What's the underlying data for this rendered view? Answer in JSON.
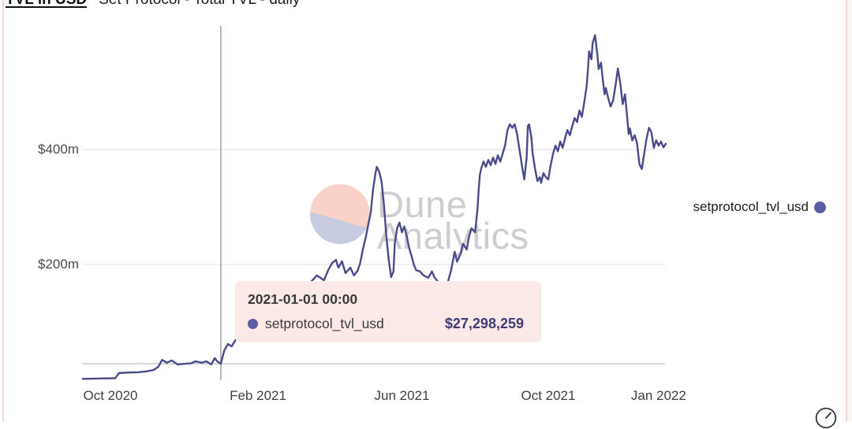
{
  "header": {
    "title_bold": "TVL in USD",
    "title_rest": "Set Protocol - Total TVL - daily"
  },
  "watermark": {
    "line1": "Dune",
    "line2": "Analytics",
    "circle_color_top": "#f8d2c9",
    "circle_color_bottom": "#c6cbe0"
  },
  "legend": {
    "label": "setprotocol_tvl_usd",
    "dot_color": "#5c5ca6"
  },
  "tooltip": {
    "datetime": "2021-01-01 00:00",
    "series_label": "setprotocol_tvl_usd",
    "value": "$27,298,259",
    "bg": "#fbe9e7",
    "dot_color": "#5c5ca6"
  },
  "colors": {
    "line": "#4b4b8c",
    "gridline": "#f2e9e8",
    "crosshair_v": "#a6a6a6",
    "crosshair_h": "#c6c6c6"
  },
  "chart_data": {
    "type": "line",
    "title": "Set Protocol - Total TVL - daily",
    "ylabel": "TVL in USD",
    "unit": "USD millions",
    "ylim": [
      0,
      615
    ],
    "grid": "horizontal-only",
    "legend_position": "right",
    "y_ticks": [
      {
        "label": "$200m",
        "value": 200
      },
      {
        "label": "$400m",
        "value": 400
      }
    ],
    "x_ticks": [
      {
        "label": "Oct 2020",
        "date": "2020-10-01"
      },
      {
        "label": "Feb 2021",
        "date": "2021-02-01"
      },
      {
        "label": "Jun 2021",
        "date": "2021-06-01"
      },
      {
        "label": "Oct 2021",
        "date": "2021-10-01"
      },
      {
        "label": "Jan 2022",
        "date": "2022-01-01"
      }
    ],
    "crosshair": {
      "date": "2021-01-01",
      "value": 27.3
    },
    "hovered_point": {
      "datetime": "2021-01-01 00:00",
      "series": "setprotocol_tvl_usd",
      "value_usd": 27298259
    },
    "series": [
      {
        "name": "setprotocol_tvl_usd",
        "color": "#4b4b8c",
        "points": [
          [
            "2020-09-08",
            1
          ],
          [
            "2020-09-20",
            1.5
          ],
          [
            "2020-10-05",
            2
          ],
          [
            "2020-10-08",
            11
          ],
          [
            "2020-10-16",
            12
          ],
          [
            "2020-10-24",
            12.5
          ],
          [
            "2020-10-31",
            14
          ],
          [
            "2020-11-06",
            16.5
          ],
          [
            "2020-11-10",
            22
          ],
          [
            "2020-11-13",
            34
          ],
          [
            "2020-11-17",
            29
          ],
          [
            "2020-11-21",
            33
          ],
          [
            "2020-11-26",
            26
          ],
          [
            "2020-12-03",
            27.5
          ],
          [
            "2020-12-07",
            28
          ],
          [
            "2020-12-11",
            31.5
          ],
          [
            "2020-12-16",
            29
          ],
          [
            "2020-12-20",
            31.5
          ],
          [
            "2020-12-24",
            26
          ],
          [
            "2020-12-27",
            37
          ],
          [
            "2020-12-29",
            31.5
          ],
          [
            "2021-01-01",
            27.3
          ],
          [
            "2021-01-04",
            50.7
          ],
          [
            "2021-01-07",
            61.6
          ],
          [
            "2021-01-10",
            57.5
          ],
          [
            "2021-01-14",
            71
          ],
          [
            "2021-01-20",
            85
          ],
          [
            "2021-01-25",
            78
          ],
          [
            "2021-02-01",
            98.6
          ],
          [
            "2021-02-07",
            112
          ],
          [
            "2021-02-12",
            105
          ],
          [
            "2021-02-17",
            126
          ],
          [
            "2021-02-24",
            140
          ],
          [
            "2021-03-01",
            133
          ],
          [
            "2021-03-08",
            153
          ],
          [
            "2021-03-16",
            167
          ],
          [
            "2021-03-22",
            181
          ],
          [
            "2021-03-28",
            172.6
          ],
          [
            "2021-04-01",
            192
          ],
          [
            "2021-04-04",
            203
          ],
          [
            "2021-04-07",
            208
          ],
          [
            "2021-04-09",
            194.5
          ],
          [
            "2021-04-12",
            205.5
          ],
          [
            "2021-04-15",
            185
          ],
          [
            "2021-04-19",
            194.5
          ],
          [
            "2021-04-22",
            181
          ],
          [
            "2021-04-25",
            189
          ],
          [
            "2021-04-27",
            201
          ],
          [
            "2021-04-29",
            222
          ],
          [
            "2021-05-02",
            249
          ],
          [
            "2021-05-04",
            270
          ],
          [
            "2021-05-06",
            290
          ],
          [
            "2021-05-08",
            331.5
          ],
          [
            "2021-05-10",
            359
          ],
          [
            "2021-05-11",
            370
          ],
          [
            "2021-05-13",
            361.6
          ],
          [
            "2021-05-15",
            345
          ],
          [
            "2021-05-17",
            304
          ],
          [
            "2021-05-19",
            249
          ],
          [
            "2021-05-21",
            208
          ],
          [
            "2021-05-23",
            178
          ],
          [
            "2021-05-25",
            188
          ],
          [
            "2021-05-26",
            236
          ],
          [
            "2021-05-28",
            263
          ],
          [
            "2021-05-30",
            273
          ],
          [
            "2021-06-01",
            256
          ],
          [
            "2021-06-03",
            266
          ],
          [
            "2021-06-05",
            249
          ],
          [
            "2021-06-07",
            229
          ],
          [
            "2021-06-09",
            215
          ],
          [
            "2021-06-11",
            199
          ],
          [
            "2021-06-13",
            190
          ],
          [
            "2021-06-16",
            188
          ],
          [
            "2021-06-19",
            181
          ],
          [
            "2021-06-23",
            177
          ],
          [
            "2021-06-26",
            188
          ],
          [
            "2021-06-28",
            178
          ],
          [
            "2021-07-01",
            170
          ],
          [
            "2021-07-05",
            164
          ],
          [
            "2021-07-09",
            167
          ],
          [
            "2021-07-12",
            190
          ],
          [
            "2021-07-15",
            222
          ],
          [
            "2021-07-17",
            205
          ],
          [
            "2021-07-20",
            219
          ],
          [
            "2021-07-22",
            236
          ],
          [
            "2021-07-25",
            226
          ],
          [
            "2021-07-27",
            249
          ],
          [
            "2021-07-29",
            263
          ],
          [
            "2021-08-01",
            256
          ],
          [
            "2021-08-03",
            297
          ],
          [
            "2021-08-04",
            331
          ],
          [
            "2021-08-05",
            356
          ],
          [
            "2021-08-06",
            366
          ],
          [
            "2021-08-08",
            379
          ],
          [
            "2021-08-10",
            370
          ],
          [
            "2021-08-12",
            382
          ],
          [
            "2021-08-14",
            373
          ],
          [
            "2021-08-16",
            386
          ],
          [
            "2021-08-18",
            375
          ],
          [
            "2021-08-20",
            390
          ],
          [
            "2021-08-22",
            379
          ],
          [
            "2021-08-24",
            393
          ],
          [
            "2021-08-26",
            407
          ],
          [
            "2021-08-28",
            434
          ],
          [
            "2021-08-30",
            444
          ],
          [
            "2021-09-01",
            438
          ],
          [
            "2021-09-03",
            444
          ],
          [
            "2021-09-05",
            427
          ],
          [
            "2021-09-07",
            400
          ],
          [
            "2021-09-09",
            373
          ],
          [
            "2021-09-11",
            348
          ],
          [
            "2021-09-13",
            386
          ],
          [
            "2021-09-14",
            441
          ],
          [
            "2021-09-15",
            444
          ],
          [
            "2021-09-17",
            420
          ],
          [
            "2021-09-18",
            393
          ],
          [
            "2021-09-20",
            366
          ],
          [
            "2021-09-22",
            345
          ],
          [
            "2021-09-24",
            352
          ],
          [
            "2021-09-25",
            342
          ],
          [
            "2021-09-27",
            359
          ],
          [
            "2021-09-29",
            352
          ],
          [
            "2021-10-01",
            348
          ],
          [
            "2021-10-03",
            373
          ],
          [
            "2021-10-05",
            393
          ],
          [
            "2021-10-07",
            407
          ],
          [
            "2021-10-09",
            397
          ],
          [
            "2021-10-11",
            414
          ],
          [
            "2021-10-13",
            403
          ],
          [
            "2021-10-15",
            420
          ],
          [
            "2021-10-17",
            434
          ],
          [
            "2021-10-19",
            425
          ],
          [
            "2021-10-21",
            441
          ],
          [
            "2021-10-23",
            455
          ],
          [
            "2021-10-25",
            448
          ],
          [
            "2021-10-27",
            468
          ],
          [
            "2021-10-29",
            457
          ],
          [
            "2021-10-31",
            482
          ],
          [
            "2021-11-02",
            510
          ],
          [
            "2021-11-03",
            537
          ],
          [
            "2021-11-04",
            571
          ],
          [
            "2021-11-06",
            557
          ],
          [
            "2021-11-07",
            585
          ],
          [
            "2021-11-09",
            599
          ],
          [
            "2021-11-11",
            564
          ],
          [
            "2021-11-12",
            540
          ],
          [
            "2021-11-14",
            551
          ],
          [
            "2021-11-15",
            530
          ],
          [
            "2021-11-17",
            496
          ],
          [
            "2021-11-18",
            507
          ],
          [
            "2021-11-20",
            489
          ],
          [
            "2021-11-22",
            475
          ],
          [
            "2021-11-24",
            485
          ],
          [
            "2021-11-26",
            510
          ],
          [
            "2021-11-28",
            541
          ],
          [
            "2021-11-30",
            516
          ],
          [
            "2021-12-02",
            479
          ],
          [
            "2021-12-04",
            496
          ],
          [
            "2021-12-06",
            452
          ],
          [
            "2021-12-07",
            427
          ],
          [
            "2021-12-08",
            437
          ],
          [
            "2021-12-10",
            416
          ],
          [
            "2021-12-12",
            425
          ],
          [
            "2021-12-14",
            411
          ],
          [
            "2021-12-16",
            375
          ],
          [
            "2021-12-18",
            366
          ],
          [
            "2021-12-20",
            393
          ],
          [
            "2021-12-22",
            420
          ],
          [
            "2021-12-24",
            438
          ],
          [
            "2021-12-26",
            430
          ],
          [
            "2021-12-28",
            403
          ],
          [
            "2021-12-30",
            416
          ],
          [
            "2022-01-01",
            407
          ],
          [
            "2022-01-03",
            414
          ],
          [
            "2022-01-05",
            404
          ],
          [
            "2022-01-07",
            410
          ]
        ]
      }
    ]
  }
}
